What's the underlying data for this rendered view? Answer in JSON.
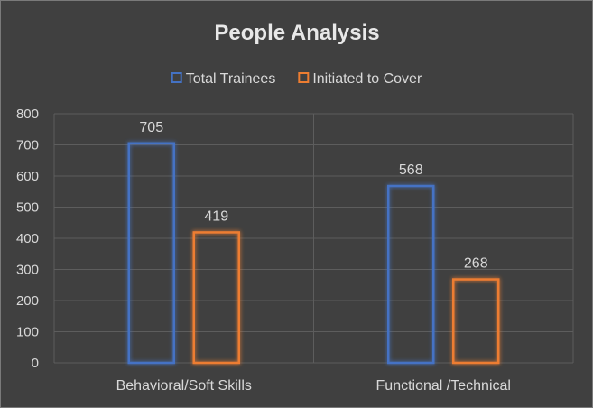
{
  "chart_data": {
    "type": "bar",
    "title": "People Analysis",
    "categories": [
      "Behavioral/Soft Skills",
      "Functional /Technical"
    ],
    "series": [
      {
        "name": "Total Trainees",
        "values": [
          705,
          568
        ],
        "color": "#4472c4"
      },
      {
        "name": "Initiated to Cover",
        "values": [
          419,
          268
        ],
        "color": "#ed7d31"
      }
    ],
    "ylim": [
      0,
      800
    ],
    "yticks": [
      "0",
      "100",
      "200",
      "300",
      "400",
      "500",
      "600",
      "700",
      "800"
    ],
    "grid": true,
    "legend": "top",
    "xlabel": "",
    "ylabel": ""
  }
}
